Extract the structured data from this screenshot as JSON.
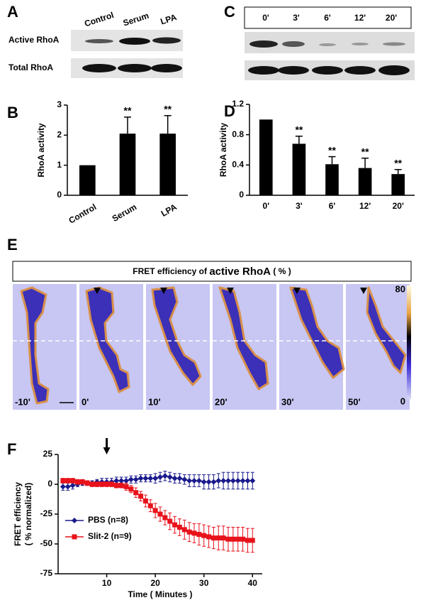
{
  "panel_labels": [
    "A",
    "B",
    "C",
    "D",
    "E",
    "F"
  ],
  "blot_A": {
    "lanes": [
      "Control",
      "Serum",
      "LPA"
    ],
    "rows": [
      "Active RhoA",
      "Total RhoA"
    ]
  },
  "blot_C": {
    "lanes": [
      "0'",
      "3'",
      "6'",
      "12'",
      "20'"
    ]
  },
  "fret_images": {
    "title_parts": [
      "FRET efficiency of ",
      "active RhoA",
      " ( % )"
    ],
    "times": [
      "-10'",
      "0'",
      "10'",
      "20'",
      "30'",
      "50'"
    ],
    "colorbar_max": "80",
    "colorbar_min": "0"
  },
  "chart_data": [
    {
      "type": "bar",
      "ylabel": "RhoA activity",
      "categories": [
        "Control",
        "Serum",
        "LPA"
      ],
      "values": [
        1,
        2.05,
        2.05
      ],
      "errors": [
        0,
        0.55,
        0.6
      ],
      "annotations": [
        null,
        "**",
        "**"
      ],
      "color": "#000000",
      "ylim": [
        0,
        3
      ],
      "yticks": [
        0,
        1,
        2,
        3
      ],
      "label_rotation": -30
    },
    {
      "type": "bar",
      "ylabel": "RhoA activity",
      "categories": [
        "0'",
        "3'",
        "6'",
        "12'",
        "20'"
      ],
      "values": [
        1.0,
        0.68,
        0.41,
        0.36,
        0.28
      ],
      "errors": [
        0,
        0.1,
        0.1,
        0.13,
        0.06
      ],
      "annotations": [
        null,
        "**",
        "**",
        "**",
        "**"
      ],
      "color": "#000000",
      "ylim": [
        0,
        1.2
      ],
      "yticks": [
        0,
        0.4,
        0.8,
        1.2
      ]
    },
    {
      "type": "line",
      "ylabel": [
        "FRET efficiency",
        "( % normalized)"
      ],
      "xlabel": "Time ( Minutes )",
      "xlim": [
        0,
        42
      ],
      "xticks": [
        10,
        20,
        30,
        40
      ],
      "ylim": [
        -75,
        25
      ],
      "yticks": [
        25,
        0,
        -25,
        -50,
        -75
      ],
      "arrow_x": 10,
      "x": [
        1,
        2,
        3,
        4,
        5,
        6,
        7,
        8,
        9,
        10,
        11,
        12,
        13,
        14,
        15,
        16,
        17,
        18,
        19,
        20,
        21,
        22,
        23,
        24,
        25,
        26,
        27,
        28,
        29,
        30,
        31,
        32,
        33,
        34,
        35,
        36,
        37,
        38,
        39,
        40
      ],
      "series": [
        {
          "name": "PBS (n=8)",
          "color": "#1a1a8c",
          "marker": "diamond",
          "values": [
            -2,
            -2,
            -1,
            0,
            1,
            1,
            1,
            2,
            2,
            2,
            2,
            3,
            3,
            3,
            4,
            4,
            5,
            5,
            5,
            5,
            6,
            7,
            6,
            5,
            5,
            4,
            3,
            3,
            3,
            2,
            2,
            2,
            3,
            3,
            3,
            3,
            3,
            3,
            3,
            3
          ],
          "errors": [
            3,
            3,
            3,
            2,
            2,
            2,
            2,
            2,
            3,
            3,
            3,
            3,
            3,
            3,
            3,
            3,
            3,
            3,
            3,
            4,
            4,
            4,
            4,
            4,
            4,
            4,
            5,
            5,
            5,
            6,
            6,
            6,
            6,
            7,
            7,
            7,
            7,
            7,
            7,
            7
          ]
        },
        {
          "name": "Slit-2 (n=9)",
          "color": "#e8121b",
          "marker": "square",
          "values": [
            3,
            3,
            3,
            2,
            2,
            1,
            0,
            0,
            0,
            0,
            0,
            -1,
            -1,
            -2,
            -4,
            -7,
            -10,
            -14,
            -18,
            -22,
            -25,
            -28,
            -31,
            -34,
            -36,
            -38,
            -40,
            -41,
            -42,
            -43,
            -44,
            -45,
            -45,
            -45,
            -46,
            -46,
            -46,
            -46,
            -47,
            -47
          ],
          "errors": [
            2,
            2,
            2,
            2,
            2,
            2,
            2,
            2,
            2,
            2,
            2,
            2,
            2,
            3,
            3,
            4,
            4,
            5,
            5,
            6,
            6,
            6,
            7,
            7,
            7,
            8,
            8,
            8,
            9,
            9,
            9,
            9,
            10,
            10,
            10,
            10,
            10,
            10,
            10,
            10
          ]
        }
      ]
    }
  ]
}
